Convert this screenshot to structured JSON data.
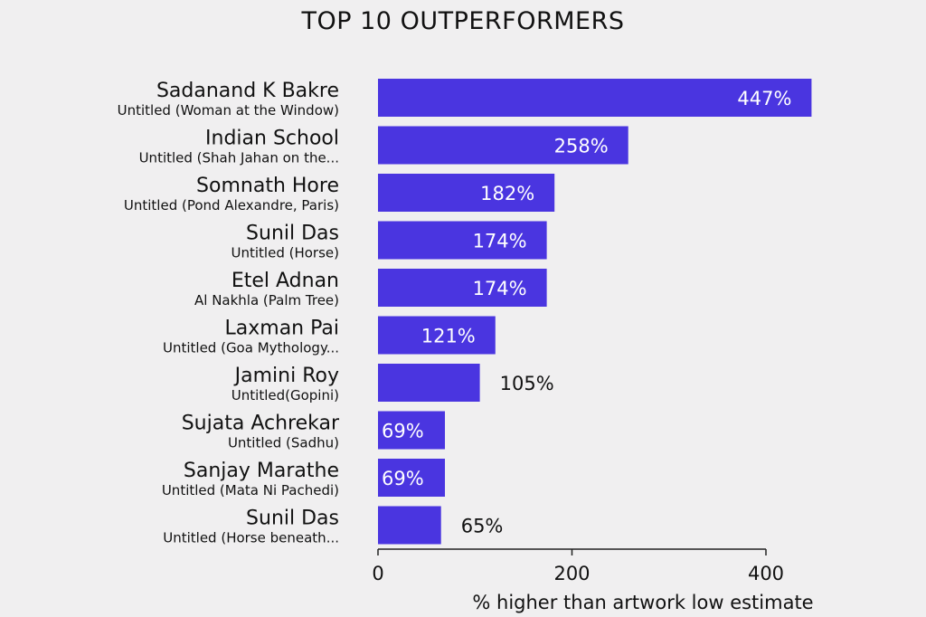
{
  "chart_data": {
    "type": "bar",
    "orientation": "horizontal",
    "title": "TOP 10 OUTPERFORMERS",
    "xlabel": "% higher than artwork low estimate",
    "ylabel": "",
    "xlim": [
      0,
      420
    ],
    "xticks": [
      0,
      200,
      400
    ],
    "grid": false,
    "bar_color": "#4a35e0",
    "categories": [
      {
        "artist": "Sadanand K Bakre",
        "work": "Untitled (Woman at the Window)"
      },
      {
        "artist": "Indian School",
        "work": "Untitled (Shah Jahan on the..."
      },
      {
        "artist": "Somnath Hore",
        "work": "Untitled (Pond Alexandre, Paris)"
      },
      {
        "artist": "Sunil Das",
        "work": "Untitled (Horse)"
      },
      {
        "artist": "Etel Adnan",
        "work": "Al Nakhla (Palm Tree)"
      },
      {
        "artist": "Laxman Pai",
        "work": "Untitled (Goa Mythology..."
      },
      {
        "artist": "Jamini Roy",
        "work": "Untitled(Gopini)"
      },
      {
        "artist": "Sujata Achrekar",
        "work": "Untitled (Sadhu)"
      },
      {
        "artist": "Sanjay Marathe",
        "work": "Untitled (Mata Ni Pachedi)"
      },
      {
        "artist": "Sunil Das",
        "work": "Untitled (Horse beneath..."
      }
    ],
    "values": [
      447,
      258,
      182,
      174,
      174,
      121,
      105,
      69,
      69,
      65
    ],
    "data_labels": [
      "447%",
      "258%",
      "182%",
      "174%",
      "174%",
      "121%",
      "105%",
      "69%",
      "69%",
      "65%"
    ]
  }
}
